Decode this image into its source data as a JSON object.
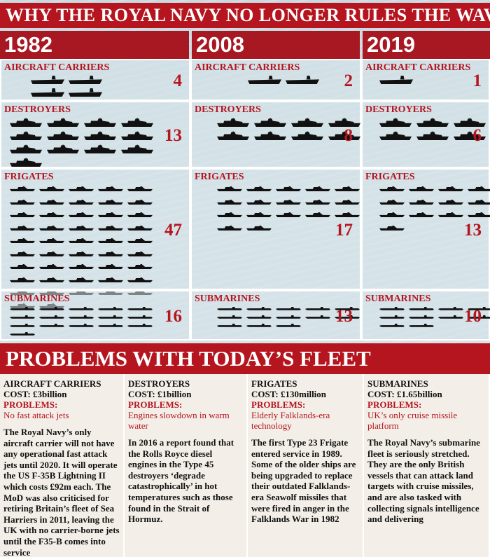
{
  "title": "WHY THE ROYAL NAVY NO LONGER RULES THE WAVES",
  "years": [
    "1982",
    "2008",
    "2019"
  ],
  "chart_data": {
    "type": "table",
    "columns": [
      "1982",
      "2008",
      "2019"
    ],
    "rows": [
      {
        "category": "AIRCRAFT CARRIERS",
        "values": [
          4,
          2,
          1
        ]
      },
      {
        "category": "DESTROYERS",
        "values": [
          13,
          8,
          6
        ]
      },
      {
        "category": "FRIGATES",
        "values": [
          47,
          17,
          13
        ]
      },
      {
        "category": "SUBMARINES",
        "values": [
          16,
          13,
          10
        ]
      }
    ]
  },
  "colors": {
    "accent": "#b5151e",
    "ship": "#111111"
  },
  "problems": {
    "title": "PROBLEMS WITH TODAY’S FLEET",
    "items": [
      {
        "name": "AIRCRAFT CARRIERS",
        "cost": "COST: £3billion",
        "problems_label": "PROBLEMS:",
        "problem": "No fast attack jets",
        "description": "The Royal Navy’s only aircraft carrier will not have any operational fast attack jets until 2020. It will operate the US F-35B Lightning II which costs £92m each. The MoD was also criticised for retiring Britain’s fleet of Sea Harriers in 2011, leaving the UK with no carrier-borne jets until the F35-B comes into service"
      },
      {
        "name": "DESTROYERS",
        "cost": "COST: £1billion",
        "problems_label": "PROBLEMS:",
        "problem": "Engines slowdown in warm water",
        "description": "In 2016 a report found that the Rolls Royce diesel engines in the Type 45 destroyers ‘degrade catastrophically’ in hot temperatures such as those found in the Strait of Hormuz."
      },
      {
        "name": "FRIGATES",
        "cost": "COST: £130million",
        "problems_label": "PROBLEMS:",
        "problem": "Elderly Falklands-era technology",
        "description": "The first Type 23 Frigate entered service in 1989. Some of the older ships are being upgraded to replace their outdated Falklands-era Seawolf missiles that were fired in anger in the Falklands War in 1982"
      },
      {
        "name": "SUBMARINES",
        "cost": "COST: £1.65billion",
        "problems_label": "PROBLEMS:",
        "problem": "UK’s only cruise missile platform",
        "description": "The Royal Navy’s submarine fleet is seriously stretched. They are the only British vessels that can attack land targets with cruise missiles, and are also tasked with collecting signals intelligence and delivering"
      }
    ]
  }
}
